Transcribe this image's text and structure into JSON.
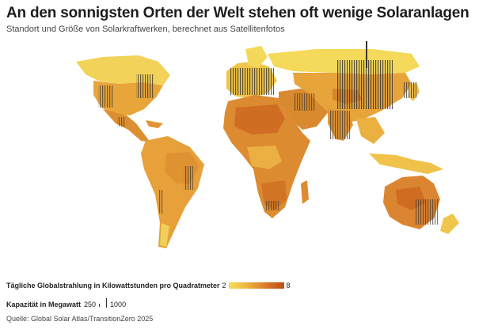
{
  "title": "An den sonnigsten Orten der Welt stehen oft wenige Solaranlagen",
  "subtitle": "Standort und Größe von Solarkraftwerken, berechnet aus Satellitenfotos",
  "legend": {
    "radiation_label": "Tägliche Globalstrahlung in Kilowattstunden pro Quadratmeter",
    "radiation_min": "2",
    "radiation_max": "8",
    "capacity_label": "Kapazität in Megawatt",
    "capacity_small": "250",
    "capacity_large": "1000"
  },
  "source": "Quelle: Global Solar Atlas/TransitionZero 2025",
  "colors": {
    "low": "#f5dd5a",
    "mid": "#eeb43d",
    "high": "#d8792a",
    "max": "#bf4e14",
    "plants": "#3a342c"
  }
}
